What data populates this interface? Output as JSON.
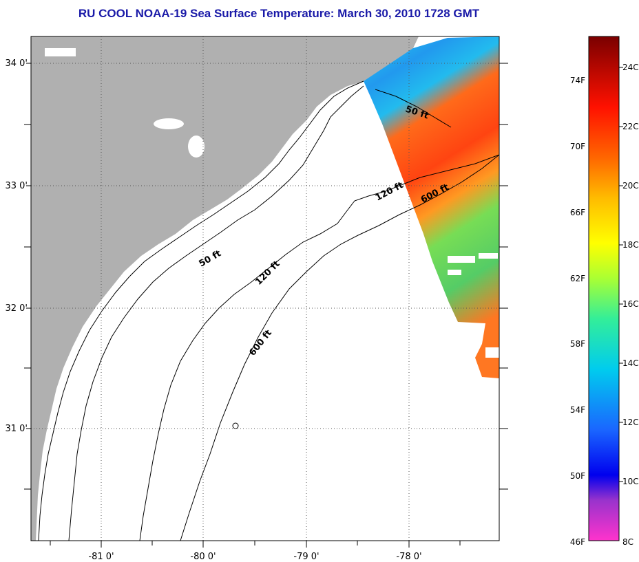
{
  "title": "RU COOL  NOAA-19  Sea Surface Temperature:  March 30, 2010 1728 GMT",
  "map": {
    "lat_labels": [
      "34 0'",
      "33 0'",
      "32 0'",
      "31 0'"
    ],
    "lon_labels": [
      "-81 0'",
      "-80 0'",
      "-79 0'",
      "-78 0'"
    ],
    "depth_contours": [
      "50 ft",
      "120 ft",
      "600 ft"
    ],
    "depth_labels": {
      "a": "50 ft",
      "b": "50 ft",
      "c": "120 ft",
      "d": "120 ft",
      "e": "600 ft",
      "f": "600 ft"
    },
    "colors": {
      "land": "#b0b0b0",
      "grid": "#555555"
    }
  },
  "colorbar": {
    "f_labels": [
      "74F",
      "70F",
      "66F",
      "62F",
      "58F",
      "54F",
      "50F",
      "46F"
    ],
    "c_labels": [
      "24C",
      "22C",
      "20C",
      "18C",
      "16C",
      "14C",
      "12C",
      "10C",
      "8C"
    ]
  }
}
